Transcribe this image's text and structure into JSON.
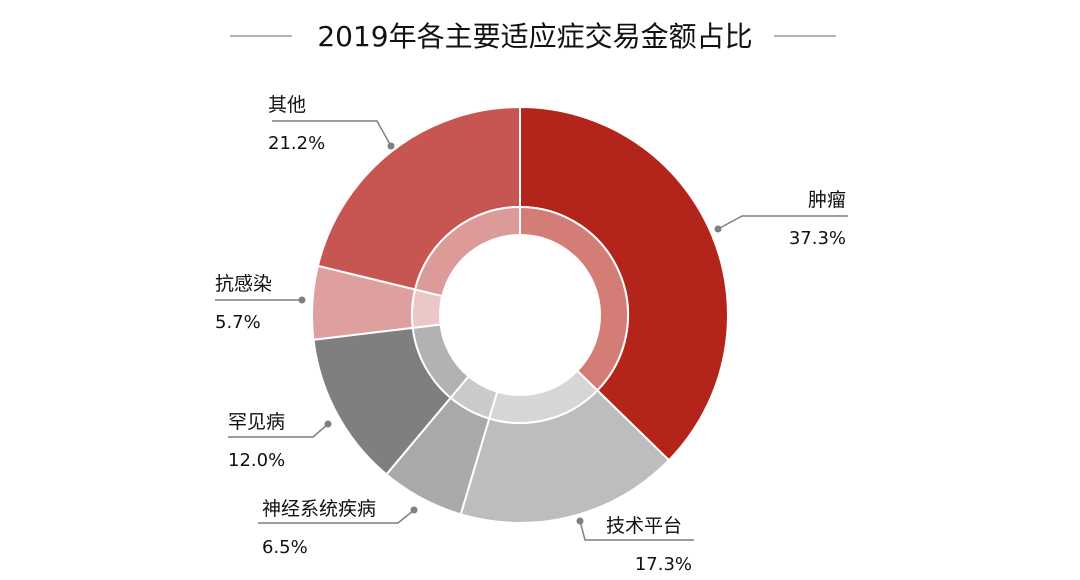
{
  "chart_data": {
    "type": "pie",
    "title": "2019年各主要适应症交易金额占比",
    "donut": true,
    "slices": [
      {
        "label": "肿瘤",
        "value": 37.3,
        "display": "37.3%",
        "color": "#B3241B",
        "inner_color": "#D47C76"
      },
      {
        "label": "技术平台",
        "value": 17.3,
        "display": "17.3%",
        "color": "#BDBDBD",
        "inner_color": "#D6D6D6"
      },
      {
        "label": "神经系统疾病",
        "value": 6.5,
        "display": "6.5%",
        "color": "#A9A9A9",
        "inner_color": "#CACACA"
      },
      {
        "label": "罕见病",
        "value": 12.0,
        "display": "12.0%",
        "color": "#7F7F7F",
        "inner_color": "#B2B2B2"
      },
      {
        "label": "抗感染",
        "value": 5.7,
        "display": "5.7%",
        "color": "#DDA09E",
        "inner_color": "#EBC7C6"
      },
      {
        "label": "其他",
        "value": 21.2,
        "display": "21.2%",
        "color": "#C75653",
        "inner_color": "#DC9B99"
      }
    ],
    "line_color": "#9A9A9A",
    "leader_color": "#7F7F7F"
  }
}
